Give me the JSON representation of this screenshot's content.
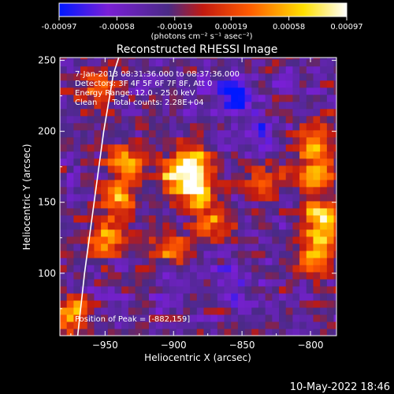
{
  "colorbar": {
    "ticks": [
      "-0.00097",
      "-0.00058",
      "-0.00019",
      "0.00019",
      "0.00058",
      "0.00097"
    ],
    "tick_values": [
      -0.00097,
      -0.00058,
      -0.00019,
      0.00019,
      0.00058,
      0.00097
    ],
    "unit": "(photons cm⁻² s⁻¹ asec⁻²)",
    "colors": [
      "#0018ff",
      "#7a1fd6",
      "#4a2a86",
      "#c21a10",
      "#ff5a00",
      "#ffe000",
      "#ffffff"
    ]
  },
  "chart_data": {
    "type": "heatmap",
    "title": "Reconstructed RHESSI Image",
    "xlabel": "Heliocentric X (arcsec)",
    "ylabel": "Heliocentric Y (arcsec)",
    "xlim": [
      -983,
      -781
    ],
    "ylim": [
      56,
      252
    ],
    "xticks": [
      -950,
      -900,
      -850,
      -800
    ],
    "yticks": [
      100,
      150,
      200,
      250
    ],
    "annotations": [
      "7-Jan-2013 08:31:36.000 to 08:37:36.000",
      "Detectors: 3F 4F 5F 6F 7F 8F, Att 0",
      "Energy Range: 12.0 - 25.0 keV",
      "Clean      Total counts: 2.28E+04"
    ],
    "peak_label": "Position of Peak = [-882,159]",
    "peak": {
      "x": -882,
      "y": 159
    },
    "limb_curve": {
      "x": [
        -970,
        -965,
        -958,
        -951,
        -944,
        -940
      ],
      "y": [
        56,
        100,
        150,
        200,
        240,
        252
      ]
    },
    "bright_regions": [
      {
        "x": -882,
        "y": 159,
        "value": 0.00097
      },
      {
        "x": -885,
        "y": 178,
        "value": 0.0007
      },
      {
        "x": -900,
        "y": 168,
        "value": 0.0006
      },
      {
        "x": -935,
        "y": 178,
        "value": 0.00055
      },
      {
        "x": -940,
        "y": 150,
        "value": 0.0005
      },
      {
        "x": -950,
        "y": 125,
        "value": 0.00045
      },
      {
        "x": -905,
        "y": 118,
        "value": 0.0004
      },
      {
        "x": -870,
        "y": 135,
        "value": 0.0004
      },
      {
        "x": -792,
        "y": 140,
        "value": 0.0007
      },
      {
        "x": -795,
        "y": 115,
        "value": 0.00065
      },
      {
        "x": -798,
        "y": 170,
        "value": 0.0006
      },
      {
        "x": -795,
        "y": 195,
        "value": 0.0004
      },
      {
        "x": -975,
        "y": 70,
        "value": 0.00055
      },
      {
        "x": -955,
        "y": 232,
        "value": 0.0003
      },
      {
        "x": -832,
        "y": 165,
        "value": 0.0003
      }
    ],
    "dark_regions": [
      {
        "x": -855,
        "y": 225,
        "value": -0.0009
      },
      {
        "x": -840,
        "y": 200,
        "value": -0.0007
      },
      {
        "x": -870,
        "y": 232,
        "value": -0.0006
      },
      {
        "x": -860,
        "y": 95,
        "value": -0.0006
      },
      {
        "x": -905,
        "y": 88,
        "value": -0.0005
      },
      {
        "x": -845,
        "y": 80,
        "value": -0.0005
      },
      {
        "x": -815,
        "y": 235,
        "value": -0.0004
      }
    ]
  },
  "footer": {
    "timestamp": "10-May-2022 18:46"
  }
}
